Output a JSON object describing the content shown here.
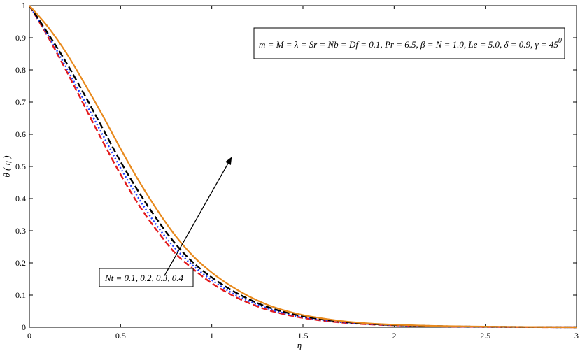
{
  "chart_data": {
    "type": "line",
    "xlabel": "η",
    "ylabel": "θ ( η )",
    "xlim": [
      0,
      3
    ],
    "ylim": [
      0,
      1
    ],
    "x_ticks": [
      0,
      0.5,
      1,
      1.5,
      2,
      2.5,
      3
    ],
    "x_tick_labels": [
      "0",
      "0.5",
      "1",
      "1.5",
      "2",
      "2.5",
      "3"
    ],
    "y_ticks": [
      0,
      0.1,
      0.2,
      0.3,
      0.4,
      0.5,
      0.6,
      0.7,
      0.8,
      0.9,
      1
    ],
    "y_tick_labels": [
      "0",
      "0.1",
      "0.2",
      "0.3",
      "0.4",
      "0.5",
      "0.6",
      "0.7",
      "0.8",
      "0.9",
      "1"
    ],
    "grid": false,
    "x": [
      0,
      0.1,
      0.2,
      0.3,
      0.4,
      0.5,
      0.6,
      0.7,
      0.8,
      0.9,
      1.0,
      1.1,
      1.2,
      1.3,
      1.4,
      1.5,
      1.6,
      1.7,
      1.8,
      1.9,
      2.0,
      2.2,
      2.4,
      2.7,
      3.0
    ],
    "series": [
      {
        "color": "#e31a1c",
        "style": "dashed",
        "values": [
          1.0,
          0.905,
          0.8,
          0.69,
          0.58,
          0.475,
          0.38,
          0.3,
          0.23,
          0.18,
          0.137,
          0.103,
          0.076,
          0.055,
          0.04,
          0.029,
          0.021,
          0.015,
          0.011,
          0.008,
          0.006,
          0.003,
          0.0015,
          0.0005,
          0.0
        ]
      },
      {
        "color": "#1f3fff",
        "style": "dotted",
        "values": [
          1.0,
          0.91,
          0.81,
          0.705,
          0.6,
          0.495,
          0.4,
          0.315,
          0.245,
          0.19,
          0.147,
          0.11,
          0.082,
          0.06,
          0.043,
          0.031,
          0.023,
          0.016,
          0.012,
          0.009,
          0.0065,
          0.0035,
          0.002,
          0.0007,
          0.0
        ]
      },
      {
        "color": "#000000",
        "style": "dashed",
        "values": [
          1.0,
          0.915,
          0.825,
          0.725,
          0.62,
          0.515,
          0.42,
          0.335,
          0.26,
          0.2,
          0.155,
          0.118,
          0.088,
          0.064,
          0.047,
          0.034,
          0.025,
          0.018,
          0.013,
          0.0095,
          0.007,
          0.004,
          0.002,
          0.0008,
          0.0
        ]
      },
      {
        "color": "#e8891c",
        "style": "solid",
        "values": [
          1.0,
          0.935,
          0.855,
          0.76,
          0.66,
          0.555,
          0.455,
          0.365,
          0.285,
          0.22,
          0.17,
          0.13,
          0.097,
          0.071,
          0.052,
          0.038,
          0.028,
          0.02,
          0.0145,
          0.0105,
          0.0078,
          0.0045,
          0.0025,
          0.001,
          0.0
        ]
      }
    ],
    "annotations": {
      "params_text": "m = M = λ = Sr = Nb = Df = 0.1, Pr = 6.5, β = N = 1.0, Le = 5.0, δ = 0.9, γ = 45",
      "params_sup": "0",
      "nt_text": "Nt = 0.1, 0.2, 0.3, 0.4",
      "arrow_from": [
        0.74,
        0.16
      ],
      "arrow_to": [
        1.11,
        0.53
      ]
    }
  }
}
